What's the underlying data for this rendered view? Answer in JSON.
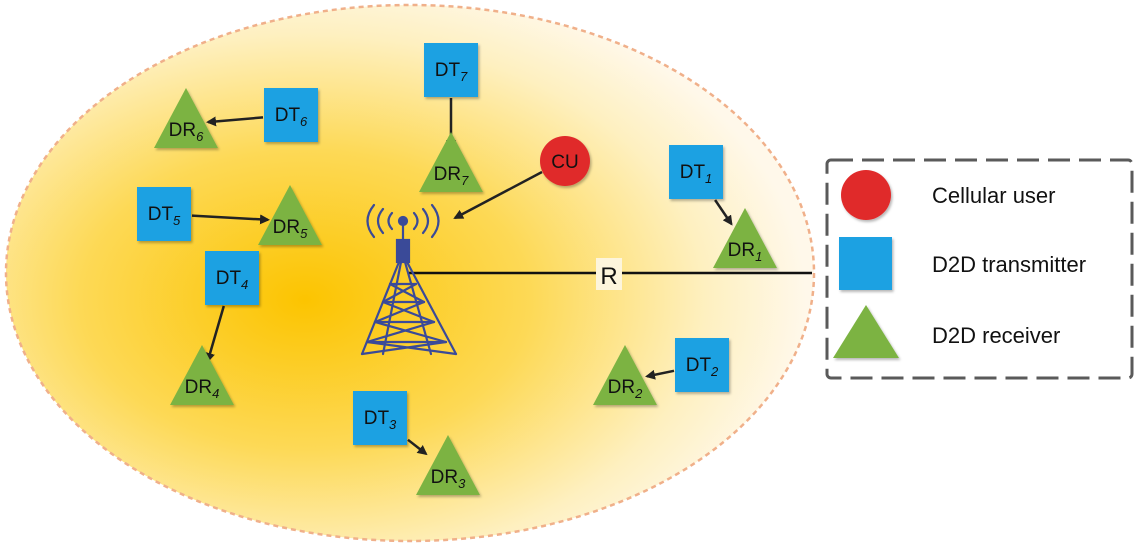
{
  "colors": {
    "cell_fill": "#fccb17",
    "cell_edge": "#f0b08a",
    "transmitter": "#1ba1e2",
    "receiver": "#7bb342",
    "cellular_user": "#e02b2b",
    "tower": "#3a4a98",
    "arrow": "#222222",
    "legend_border": "#5a5a5a"
  },
  "radius_label": "R",
  "cellular_user": {
    "label": "CU"
  },
  "base_station": {
    "icon": "cell-tower-icon"
  },
  "pairs": [
    {
      "tx": {
        "prefix": "DT",
        "sub": "1"
      },
      "rx": {
        "prefix": "DR",
        "sub": "1"
      }
    },
    {
      "tx": {
        "prefix": "DT",
        "sub": "2"
      },
      "rx": {
        "prefix": "DR",
        "sub": "2"
      }
    },
    {
      "tx": {
        "prefix": "DT",
        "sub": "3"
      },
      "rx": {
        "prefix": "DR",
        "sub": "3"
      }
    },
    {
      "tx": {
        "prefix": "DT",
        "sub": "4"
      },
      "rx": {
        "prefix": "DR",
        "sub": "4"
      }
    },
    {
      "tx": {
        "prefix": "DT",
        "sub": "5"
      },
      "rx": {
        "prefix": "DR",
        "sub": "5"
      }
    },
    {
      "tx": {
        "prefix": "DT",
        "sub": "6"
      },
      "rx": {
        "prefix": "DR",
        "sub": "6"
      }
    },
    {
      "tx": {
        "prefix": "DT",
        "sub": "7"
      },
      "rx": {
        "prefix": "DR",
        "sub": "7"
      }
    }
  ],
  "legend": {
    "items": [
      {
        "shape": "circle",
        "label": "Cellular user"
      },
      {
        "shape": "square",
        "label": "D2D transmitter"
      },
      {
        "shape": "triangle",
        "label": "D2D receiver"
      }
    ]
  }
}
